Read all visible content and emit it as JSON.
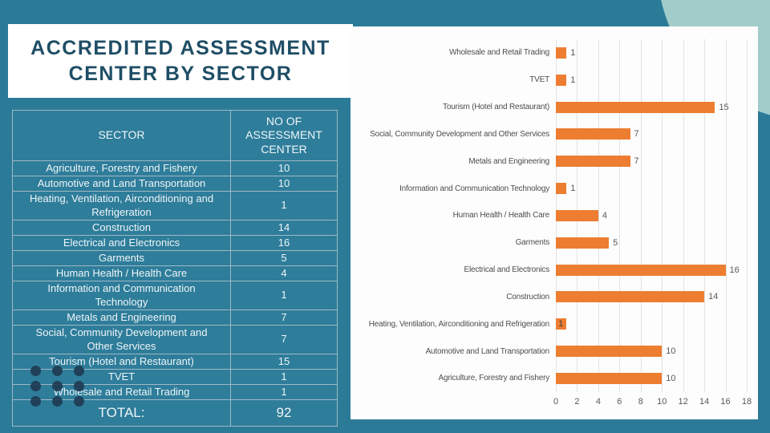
{
  "slide": {
    "title": "ACCREDITED ASSESSMENT\nCENTER BY SECTOR"
  },
  "colors": {
    "background_teal": "#2B7B98",
    "pale_circle": "#A2CCCA",
    "title_text": "#1F4E66",
    "table_fill": "#2E7D9A",
    "table_border": "#9FB9C5",
    "bar_orange": "#ED7D31",
    "chart_text_gray": "#595959",
    "dot_navy": "#1F3B54"
  },
  "table": {
    "headers": [
      "SECTOR",
      "NO OF\nASSESSMENT\nCENTER"
    ],
    "rows": [
      {
        "sector": "Agriculture, Forestry and Fishery",
        "count": "10",
        "tall": false
      },
      {
        "sector": "Automotive and Land Transportation",
        "count": "10",
        "tall": false
      },
      {
        "sector": "Heating, Ventilation, Airconditioning and\nRefrigeration",
        "count": "1",
        "tall": true
      },
      {
        "sector": "Construction",
        "count": "14",
        "tall": false
      },
      {
        "sector": "Electrical and Electronics",
        "count": "16",
        "tall": false
      },
      {
        "sector": "Garments",
        "count": "5",
        "tall": false
      },
      {
        "sector": "Human Health / Health Care",
        "count": "4",
        "tall": false
      },
      {
        "sector": "Information and Communication\nTechnology",
        "count": "1",
        "tall": true
      },
      {
        "sector": "Metals and Engineering",
        "count": "7",
        "tall": false
      },
      {
        "sector": "Social, Community Development and\nOther Services",
        "count": "7",
        "tall": true
      },
      {
        "sector": "Tourism (Hotel and Restaurant)",
        "count": "15",
        "tall": false
      },
      {
        "sector": "TVET",
        "count": "1",
        "tall": false
      },
      {
        "sector": "Wholesale and Retail Trading",
        "count": "1",
        "tall": false
      }
    ],
    "total_label": "TOTAL:",
    "total_value": "92"
  },
  "chart_data": {
    "type": "bar",
    "orientation": "horizontal",
    "title": "",
    "xlabel": "",
    "ylabel": "",
    "categories": [
      "Wholesale and Retail Trading",
      "TVET",
      "Tourism (Hotel and Restaurant)",
      "Social, Community Development and Other Services",
      "Metals and Engineering",
      "Information and Communication Technology",
      "Human Health / Health Care",
      "Garments",
      "Electrical and Electronics",
      "Construction",
      "Heating, Ventilation, Airconditioning and Refrigeration",
      "Automotive and Land Transportation",
      "Agriculture, Forestry and Fishery"
    ],
    "values": [
      1,
      1,
      15,
      7,
      7,
      1,
      4,
      5,
      16,
      14,
      1,
      10,
      10
    ],
    "label_inside_indices": [
      10
    ],
    "xlim": [
      0,
      18
    ],
    "xticks": [
      "0",
      "2",
      "4",
      "6",
      "8",
      "10",
      "12",
      "14",
      "16",
      "18"
    ],
    "grid": true,
    "legend": false,
    "bar_color": "#ED7D31"
  }
}
